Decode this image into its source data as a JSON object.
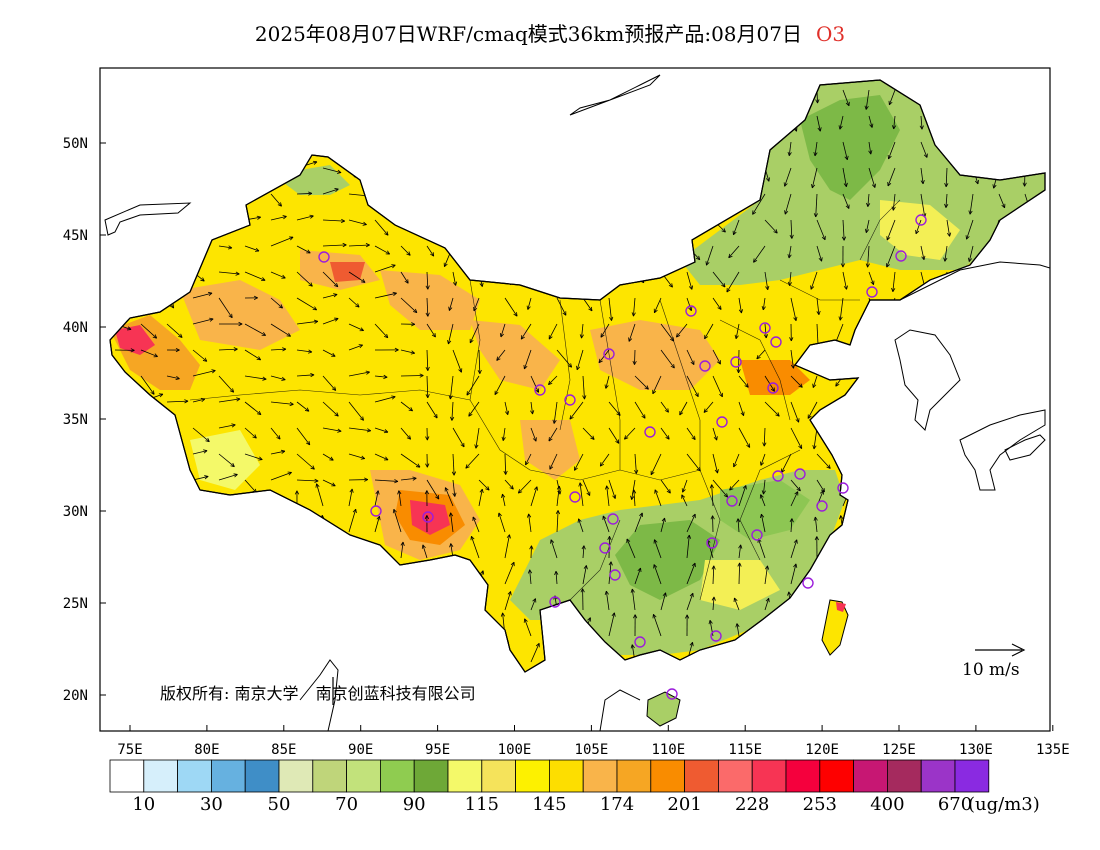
{
  "title": {
    "main": "2025年08月07日WRF/cmaq模式36km预报产品:08月07日",
    "pollutant": "O3"
  },
  "axes": {
    "lat_labels": [
      "50N",
      "45N",
      "40N",
      "35N",
      "30N",
      "25N",
      "20N"
    ],
    "lon_labels": [
      "75E",
      "80E",
      "85E",
      "90E",
      "95E",
      "100E",
      "105E",
      "110E",
      "115E",
      "120E",
      "125E",
      "130E",
      "135E"
    ]
  },
  "copyright": {
    "prefix": "版权所有:",
    "org1": "南京大学",
    "org2": "南京创蓝科技有限公司"
  },
  "wind_reference": {
    "label": "10 m/s"
  },
  "legend": {
    "colors": [
      "#ffffff",
      "#d6effb",
      "#9ed8f5",
      "#66b1e0",
      "#3f8ec7",
      "#dfe9b6",
      "#bfd57a",
      "#c2e27b",
      "#8fcc50",
      "#6ea837",
      "#f4f969",
      "#f5e35b",
      "#fdf100",
      "#fdde00",
      "#f9b44a",
      "#f6a623",
      "#f98c00",
      "#ef5b31",
      "#fb6a6a",
      "#f73454",
      "#f5003d",
      "#fe0000",
      "#c71773",
      "#a52a5e",
      "#9b34c8",
      "#8a2ae1"
    ],
    "tick_labels": [
      "10",
      "30",
      "50",
      "70",
      "90",
      "115",
      "145",
      "174",
      "201",
      "228",
      "253",
      "400",
      "670"
    ],
    "unit": "(ug/m3)"
  },
  "colors": {
    "ocean": "#ffffff",
    "frame": "#000000",
    "station_marker": "#9b1ddb",
    "wind_arrow": "#000000"
  }
}
